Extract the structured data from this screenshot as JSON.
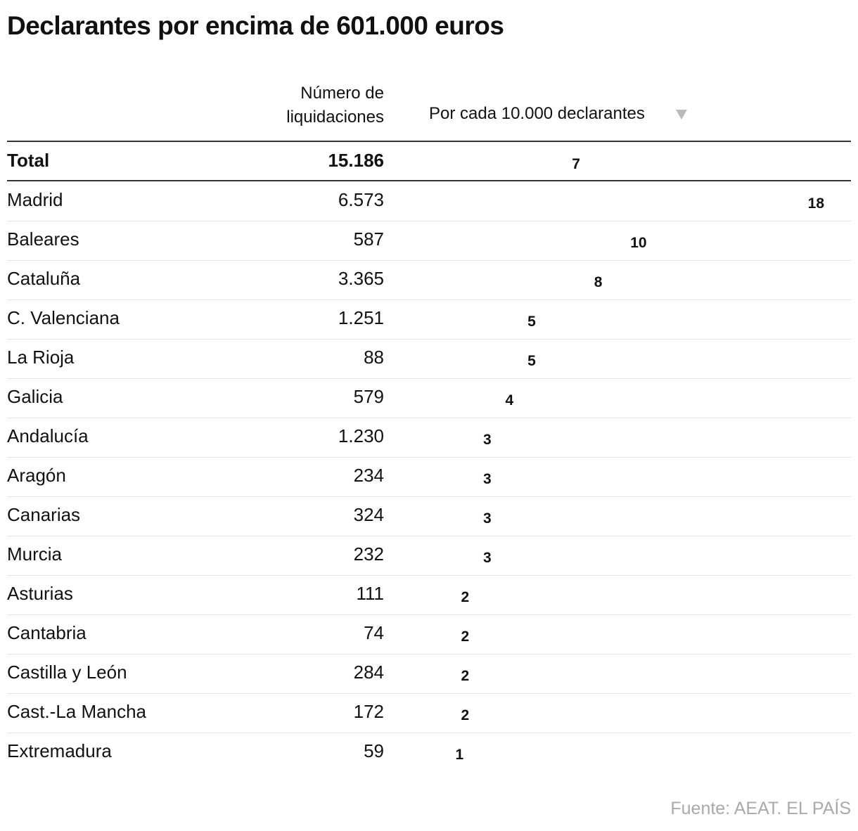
{
  "title": "Declarantes por encima de 601.000 euros",
  "columns": {
    "count": "Número de liquidaciones",
    "rate": "Por cada 10.000 declarantes"
  },
  "color": "#00bfff",
  "total": {
    "name": "Total",
    "count": "15.186",
    "rate": 7
  },
  "rows": [
    {
      "name": "Madrid",
      "count": "6.573",
      "rate": 18
    },
    {
      "name": "Baleares",
      "count": "587",
      "rate": 10
    },
    {
      "name": "Cataluña",
      "count": "3.365",
      "rate": 8
    },
    {
      "name": "C. Valenciana",
      "count": "1.251",
      "rate": 5
    },
    {
      "name": "La Rioja",
      "count": "88",
      "rate": 5
    },
    {
      "name": "Galicia",
      "count": "579",
      "rate": 4
    },
    {
      "name": "Andalucía",
      "count": "1.230",
      "rate": 3
    },
    {
      "name": "Aragón",
      "count": "234",
      "rate": 3
    },
    {
      "name": "Canarias",
      "count": "324",
      "rate": 3
    },
    {
      "name": "Murcia",
      "count": "232",
      "rate": 3
    },
    {
      "name": "Asturias",
      "count": "111",
      "rate": 2
    },
    {
      "name": "Cantabria",
      "count": "74",
      "rate": 2
    },
    {
      "name": "Castilla y León",
      "count": "284",
      "rate": 2
    },
    {
      "name": "Cast.-La Mancha",
      "count": "172",
      "rate": 2
    },
    {
      "name": "Extremadura",
      "count": "59",
      "rate": 1
    }
  ],
  "source": "Fuente: AEAT. EL PAÍS"
}
